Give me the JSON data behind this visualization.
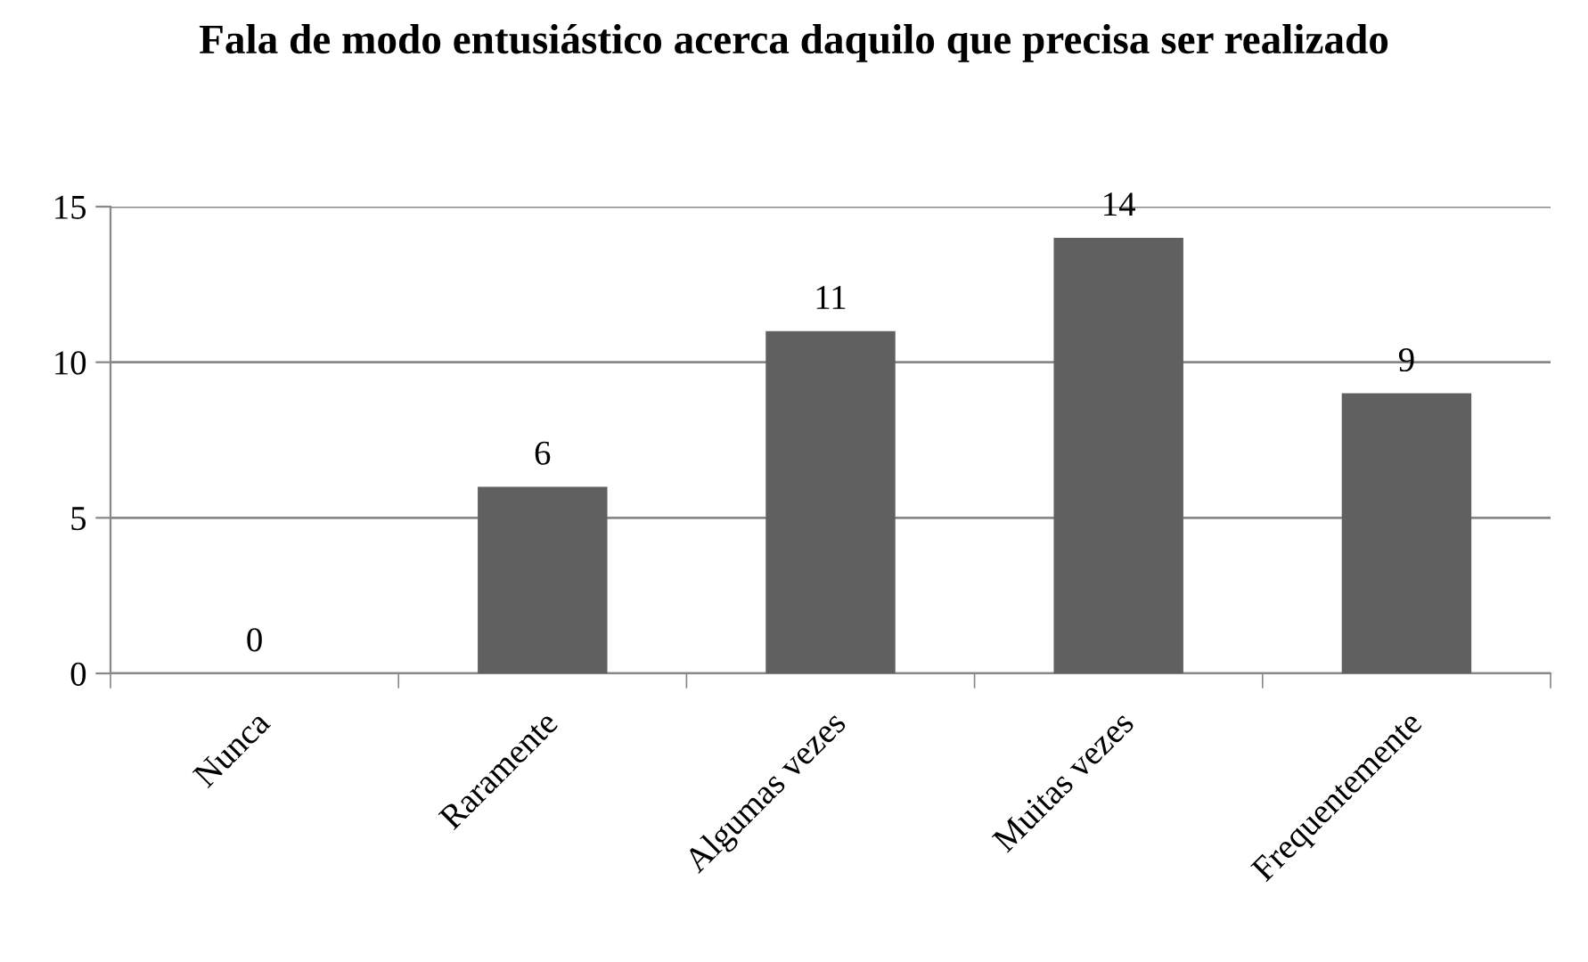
{
  "chart_data": {
    "type": "bar",
    "title": "Fala de modo entusiástico acerca daquilo que precisa ser realizado",
    "categories": [
      "Nunca",
      "Raramente",
      "Algumas vezes",
      "Muitas vezes",
      "Frequentemente"
    ],
    "values": [
      0,
      6,
      11,
      14,
      9
    ],
    "color": "#606060",
    "ylim": [
      0,
      15
    ],
    "yticks": [
      0,
      5,
      10,
      15
    ],
    "grid": "y",
    "data_labels": true,
    "legend": false
  }
}
